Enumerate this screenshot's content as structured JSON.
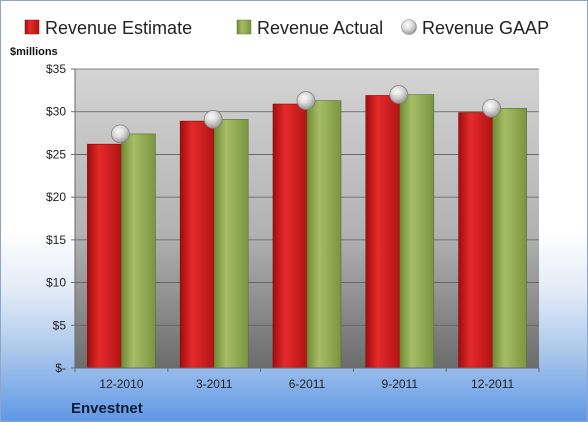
{
  "chart_data": {
    "type": "bar",
    "company": "Envestnet",
    "ylabel": "$millions",
    "categories": [
      "12-2010",
      "3-2011",
      "6-2011",
      "9-2011",
      "12-2011"
    ],
    "series": [
      {
        "name": "Revenue Estimate",
        "kind": "bar",
        "color": "#cc1a1a",
        "values": [
          26.2,
          28.9,
          30.9,
          31.9,
          29.9
        ]
      },
      {
        "name": "Revenue Actual",
        "kind": "bar",
        "color": "#8fa84f",
        "values": [
          27.4,
          29.1,
          31.3,
          32.0,
          30.4
        ]
      },
      {
        "name": "Revenue GAAP",
        "kind": "marker",
        "color": "#c8c8c8",
        "values": [
          27.4,
          29.1,
          31.3,
          32.0,
          30.4
        ]
      }
    ],
    "ylim": [
      0,
      35
    ],
    "yticks": [
      0,
      5,
      10,
      15,
      20,
      25,
      30,
      35
    ],
    "ytick_labels": [
      "$-",
      "$5",
      "$10",
      "$15",
      "$20",
      "$25",
      "$30",
      "$35"
    ],
    "grid": true,
    "legend_position": "top"
  }
}
